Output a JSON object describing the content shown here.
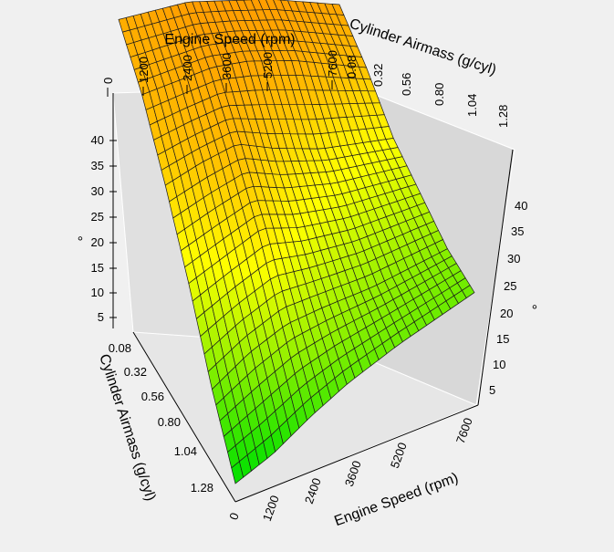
{
  "chart_data": {
    "type": "surface3d",
    "title": "",
    "x_axis": {
      "label": "Engine Speed (rpm)",
      "ticks": [
        0,
        1200,
        2400,
        3600,
        5200,
        7600
      ],
      "tick_labels": [
        "0",
        "1200",
        "2400",
        "3600",
        "5200",
        "7600"
      ],
      "range": [
        0,
        7600
      ]
    },
    "y_axis": {
      "label": "Cylinder Airmass (g/cyl)",
      "ticks": [
        0.08,
        0.32,
        0.56,
        0.8,
        1.04,
        1.28
      ],
      "tick_labels": [
        "0.08",
        "0.32",
        "0.56",
        "0.80",
        "1.04",
        "1.28"
      ],
      "range": [
        0.08,
        1.28
      ]
    },
    "z_axis": {
      "label": "°",
      "ticks": [
        5,
        10,
        15,
        20,
        25,
        30,
        35,
        40
      ],
      "tick_labels": [
        "5",
        "10",
        "15",
        "20",
        "25",
        "30",
        "35",
        "40"
      ],
      "range": [
        0,
        45
      ]
    },
    "grid": "mesh",
    "colormap": [
      "#00e000",
      "#90f000",
      "#ffff00",
      "#ffc000",
      "#ff9900"
    ],
    "rows_airmass": [
      0.08,
      0.32,
      0.56,
      0.8,
      1.04,
      1.28
    ],
    "cols_speed": [
      0,
      1200,
      2400,
      3600,
      5200,
      7600
    ],
    "values": [
      [
        38,
        40,
        42,
        42,
        42,
        40
      ],
      [
        36,
        38,
        40,
        40,
        38,
        33
      ],
      [
        30,
        33,
        35,
        31,
        27,
        24
      ],
      [
        22,
        25,
        28,
        24,
        21,
        19
      ],
      [
        12,
        16,
        18,
        17,
        15,
        14
      ],
      [
        5,
        6,
        9,
        11,
        12,
        12
      ]
    ]
  }
}
